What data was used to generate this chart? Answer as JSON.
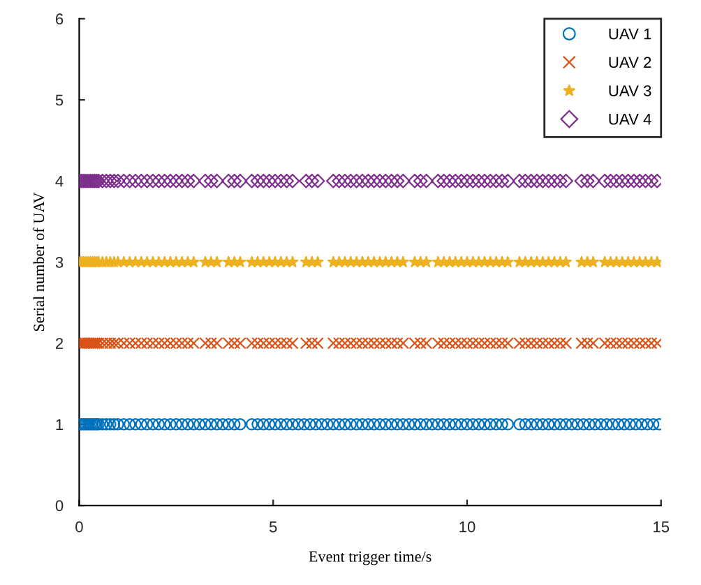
{
  "chart_data": {
    "type": "scatter",
    "xlabel": "Event trigger time/s",
    "ylabel": "Serial number of UAV",
    "xlim": [
      0,
      15
    ],
    "ylim": [
      0,
      6
    ],
    "xticks": [
      0,
      5,
      10,
      15
    ],
    "yticks": [
      0,
      1,
      2,
      3,
      4,
      5,
      6
    ],
    "grid": false,
    "legend": "top right",
    "series": [
      {
        "name": "UAV 1",
        "color": "#0072bd",
        "marker": "circle",
        "x": [
          0,
          0.05,
          0.1,
          0.15,
          0.2,
          0.25,
          0.3,
          0.35,
          0.4,
          0.45,
          0.5,
          0.6,
          0.7,
          0.8,
          0.9,
          1.0,
          1.15,
          1.3,
          1.45,
          1.6,
          1.75,
          1.9,
          2.05,
          2.2,
          2.35,
          2.5,
          2.65,
          2.8,
          2.95,
          3.1,
          3.25,
          3.4,
          3.55,
          3.7,
          3.85,
          4.0,
          4.15,
          4.45,
          4.6,
          4.75,
          4.9,
          5.05,
          5.2,
          5.35,
          5.5,
          5.65,
          5.8,
          5.95,
          6.1,
          6.25,
          6.4,
          6.55,
          6.7,
          6.85,
          7.0,
          7.15,
          7.3,
          7.45,
          7.6,
          7.75,
          7.9,
          8.05,
          8.2,
          8.35,
          8.5,
          8.65,
          8.8,
          8.95,
          9.1,
          9.25,
          9.4,
          9.55,
          9.7,
          9.85,
          10.0,
          10.15,
          10.3,
          10.45,
          10.6,
          10.75,
          10.9,
          11.05,
          11.35,
          11.5,
          11.65,
          11.8,
          11.95,
          12.1,
          12.25,
          12.4,
          12.55,
          12.7,
          12.85,
          13.0,
          13.15,
          13.3,
          13.45,
          13.6,
          13.75,
          13.9,
          14.05,
          14.2,
          14.35,
          14.5,
          14.65,
          14.8,
          14.95
        ],
        "values": [
          1,
          1,
          1,
          1,
          1,
          1,
          1,
          1,
          1,
          1,
          1,
          1,
          1,
          1,
          1,
          1,
          1,
          1,
          1,
          1,
          1,
          1,
          1,
          1,
          1,
          1,
          1,
          1,
          1,
          1,
          1,
          1,
          1,
          1,
          1,
          1,
          1,
          1,
          1,
          1,
          1,
          1,
          1,
          1,
          1,
          1,
          1,
          1,
          1,
          1,
          1,
          1,
          1,
          1,
          1,
          1,
          1,
          1,
          1,
          1,
          1,
          1,
          1,
          1,
          1,
          1,
          1,
          1,
          1,
          1,
          1,
          1,
          1,
          1,
          1,
          1,
          1,
          1,
          1,
          1,
          1,
          1,
          1,
          1,
          1,
          1,
          1,
          1,
          1,
          1,
          1,
          1,
          1,
          1,
          1,
          1,
          1,
          1,
          1,
          1,
          1,
          1,
          1,
          1,
          1,
          1,
          1
        ]
      },
      {
        "name": "UAV 2",
        "color": "#d95319",
        "marker": "cross",
        "x": [
          0,
          0.05,
          0.1,
          0.15,
          0.2,
          0.25,
          0.3,
          0.35,
          0.4,
          0.45,
          0.5,
          0.6,
          0.7,
          0.8,
          0.9,
          1.0,
          1.15,
          1.3,
          1.45,
          1.6,
          1.75,
          1.9,
          2.05,
          2.2,
          2.35,
          2.5,
          2.65,
          2.8,
          2.95,
          3.25,
          3.4,
          3.55,
          3.85,
          4.0,
          4.15,
          4.45,
          4.6,
          4.75,
          4.9,
          5.05,
          5.2,
          5.35,
          5.5,
          5.85,
          6.0,
          6.15,
          6.55,
          6.7,
          6.85,
          7.0,
          7.15,
          7.3,
          7.45,
          7.6,
          7.75,
          7.9,
          8.05,
          8.2,
          8.35,
          8.65,
          8.8,
          8.95,
          9.25,
          9.4,
          9.55,
          9.7,
          9.85,
          10.0,
          10.15,
          10.3,
          10.45,
          10.6,
          10.75,
          10.9,
          11.05,
          11.35,
          11.5,
          11.65,
          11.8,
          11.95,
          12.1,
          12.25,
          12.4,
          12.55,
          12.95,
          13.1,
          13.25,
          13.55,
          13.7,
          13.85,
          14.0,
          14.15,
          14.3,
          14.45,
          14.6,
          14.75,
          14.9
        ],
        "values": [
          2,
          2,
          2,
          2,
          2,
          2,
          2,
          2,
          2,
          2,
          2,
          2,
          2,
          2,
          2,
          2,
          2,
          2,
          2,
          2,
          2,
          2,
          2,
          2,
          2,
          2,
          2,
          2,
          2,
          2,
          2,
          2,
          2,
          2,
          2,
          2,
          2,
          2,
          2,
          2,
          2,
          2,
          2,
          2,
          2,
          2,
          2,
          2,
          2,
          2,
          2,
          2,
          2,
          2,
          2,
          2,
          2,
          2,
          2,
          2,
          2,
          2,
          2,
          2,
          2,
          2,
          2,
          2,
          2,
          2,
          2,
          2,
          2,
          2,
          2,
          2,
          2,
          2,
          2,
          2,
          2,
          2,
          2,
          2,
          2,
          2,
          2,
          2,
          2,
          2,
          2,
          2,
          2,
          2,
          2,
          2,
          2
        ]
      },
      {
        "name": "UAV 3",
        "color": "#edb120",
        "marker": "star",
        "x": [
          0,
          0.05,
          0.1,
          0.15,
          0.2,
          0.25,
          0.3,
          0.35,
          0.4,
          0.45,
          0.5,
          0.6,
          0.7,
          0.8,
          0.9,
          1.0,
          1.15,
          1.3,
          1.45,
          1.6,
          1.75,
          1.9,
          2.05,
          2.2,
          2.35,
          2.5,
          2.65,
          2.8,
          2.95,
          3.25,
          3.4,
          3.55,
          3.85,
          4.0,
          4.15,
          4.45,
          4.6,
          4.75,
          4.9,
          5.05,
          5.2,
          5.35,
          5.5,
          5.85,
          6.0,
          6.15,
          6.55,
          6.7,
          6.85,
          7.0,
          7.15,
          7.3,
          7.45,
          7.6,
          7.75,
          7.9,
          8.05,
          8.2,
          8.35,
          8.65,
          8.8,
          8.95,
          9.25,
          9.4,
          9.55,
          9.7,
          9.85,
          10.0,
          10.15,
          10.3,
          10.45,
          10.6,
          10.75,
          10.9,
          11.05,
          11.35,
          11.5,
          11.65,
          11.8,
          11.95,
          12.1,
          12.25,
          12.4,
          12.55,
          12.95,
          13.1,
          13.25,
          13.55,
          13.7,
          13.85,
          14.0,
          14.15,
          14.3,
          14.45,
          14.6,
          14.75,
          14.9
        ],
        "values": [
          3,
          3,
          3,
          3,
          3,
          3,
          3,
          3,
          3,
          3,
          3,
          3,
          3,
          3,
          3,
          3,
          3,
          3,
          3,
          3,
          3,
          3,
          3,
          3,
          3,
          3,
          3,
          3,
          3,
          3,
          3,
          3,
          3,
          3,
          3,
          3,
          3,
          3,
          3,
          3,
          3,
          3,
          3,
          3,
          3,
          3,
          3,
          3,
          3,
          3,
          3,
          3,
          3,
          3,
          3,
          3,
          3,
          3,
          3,
          3,
          3,
          3,
          3,
          3,
          3,
          3,
          3,
          3,
          3,
          3,
          3,
          3,
          3,
          3,
          3,
          3,
          3,
          3,
          3,
          3,
          3,
          3,
          3,
          3,
          3,
          3,
          3,
          3,
          3,
          3,
          3,
          3,
          3,
          3,
          3,
          3,
          3
        ]
      },
      {
        "name": "UAV 4",
        "color": "#7e2f8e",
        "marker": "diamond",
        "x": [
          0,
          0.05,
          0.1,
          0.15,
          0.2,
          0.25,
          0.3,
          0.35,
          0.4,
          0.45,
          0.5,
          0.6,
          0.7,
          0.8,
          0.9,
          1.0,
          1.15,
          1.3,
          1.45,
          1.6,
          1.75,
          1.9,
          2.05,
          2.2,
          2.35,
          2.5,
          2.65,
          2.8,
          2.95,
          3.25,
          3.4,
          3.55,
          3.85,
          4.0,
          4.15,
          4.45,
          4.6,
          4.75,
          4.9,
          5.05,
          5.2,
          5.35,
          5.5,
          5.85,
          6.0,
          6.15,
          6.55,
          6.7,
          6.85,
          7.0,
          7.15,
          7.3,
          7.45,
          7.6,
          7.75,
          7.9,
          8.05,
          8.2,
          8.35,
          8.65,
          8.8,
          8.95,
          9.25,
          9.4,
          9.55,
          9.7,
          9.85,
          10.0,
          10.15,
          10.3,
          10.45,
          10.6,
          10.75,
          10.9,
          11.05,
          11.35,
          11.5,
          11.65,
          11.8,
          11.95,
          12.1,
          12.25,
          12.4,
          12.55,
          12.95,
          13.1,
          13.25,
          13.55,
          13.7,
          13.85,
          14.0,
          14.15,
          14.3,
          14.45,
          14.6,
          14.75,
          14.9
        ],
        "values": [
          4,
          4,
          4,
          4,
          4,
          4,
          4,
          4,
          4,
          4,
          4,
          4,
          4,
          4,
          4,
          4,
          4,
          4,
          4,
          4,
          4,
          4,
          4,
          4,
          4,
          4,
          4,
          4,
          4,
          4,
          4,
          4,
          4,
          4,
          4,
          4,
          4,
          4,
          4,
          4,
          4,
          4,
          4,
          4,
          4,
          4,
          4,
          4,
          4,
          4,
          4,
          4,
          4,
          4,
          4,
          4,
          4,
          4,
          4,
          4,
          4,
          4,
          4,
          4,
          4,
          4,
          4,
          4,
          4,
          4,
          4,
          4,
          4,
          4,
          4,
          4,
          4,
          4,
          4,
          4,
          4,
          4,
          4,
          4,
          4,
          4,
          4,
          4,
          4,
          4,
          4,
          4,
          4,
          4,
          4,
          4,
          4
        ]
      }
    ]
  }
}
